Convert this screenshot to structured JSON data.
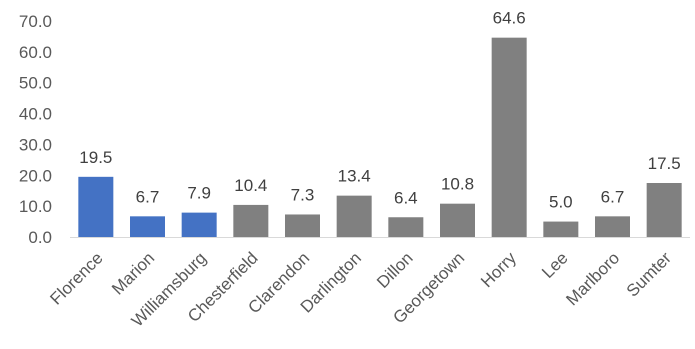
{
  "chart_data": {
    "type": "bar",
    "categories": [
      "Florence",
      "Marion",
      "Williamsburg",
      "Chesterfield",
      "Clarendon",
      "Darlington",
      "Dillon",
      "Georgetown",
      "Horry",
      "Lee",
      "Marlboro",
      "Sumter"
    ],
    "values": [
      19.5,
      6.7,
      7.9,
      10.4,
      7.3,
      13.4,
      6.4,
      10.8,
      64.6,
      5.0,
      6.7,
      17.5
    ],
    "value_labels": [
      "19.5",
      "6.7",
      "7.9",
      "10.4",
      "7.3",
      "13.4",
      "6.4",
      "10.8",
      "64.6",
      "5.0",
      "6.7",
      "17.5"
    ],
    "bar_colors": [
      "#4472C4",
      "#4472C4",
      "#4472C4",
      "#808080",
      "#808080",
      "#808080",
      "#808080",
      "#808080",
      "#808080",
      "#808080",
      "#808080",
      "#808080"
    ],
    "yticks": [
      "0.0",
      "10.0",
      "20.0",
      "30.0",
      "40.0",
      "50.0",
      "60.0",
      "70.0"
    ],
    "ylim": [
      0,
      70
    ],
    "title": "",
    "xlabel": "",
    "ylabel": "",
    "grid": false,
    "legend": "none"
  }
}
